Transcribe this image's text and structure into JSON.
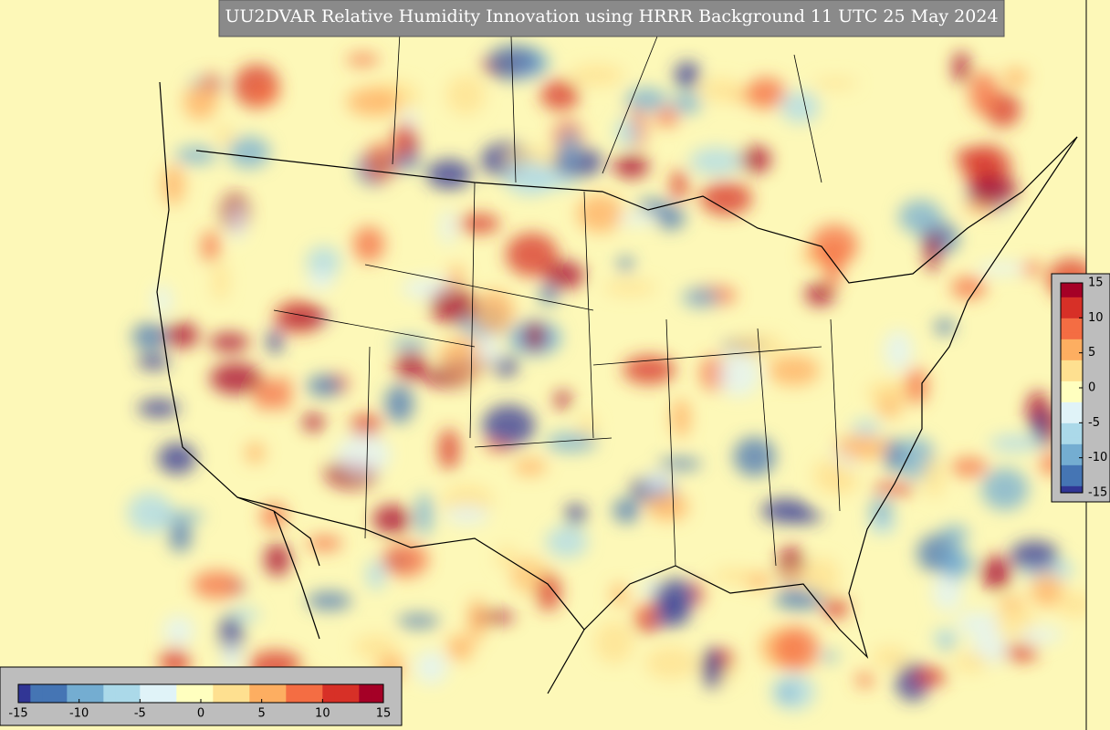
{
  "title": "UU2DVAR Relative Humidity Innovation using HRRR Background 11 UTC 25 May 2024",
  "colormap": [
    "#313695",
    "#4575b4",
    "#74add1",
    "#abd9e9",
    "#e0f3f8",
    "#ffffbf",
    "#fee090",
    "#fdae61",
    "#f46d43",
    "#d73027",
    "#a50026"
  ],
  "colorbars": [
    {
      "orientation": "horizontal",
      "lim": [
        -15,
        15
      ],
      "ticks": [
        -15,
        -10,
        -5,
        0,
        5,
        10,
        15
      ]
    },
    {
      "orientation": "vertical",
      "lim": [
        -15,
        15
      ],
      "ticks": [
        -15,
        -10,
        -5,
        0,
        5,
        10,
        15
      ]
    }
  ]
}
